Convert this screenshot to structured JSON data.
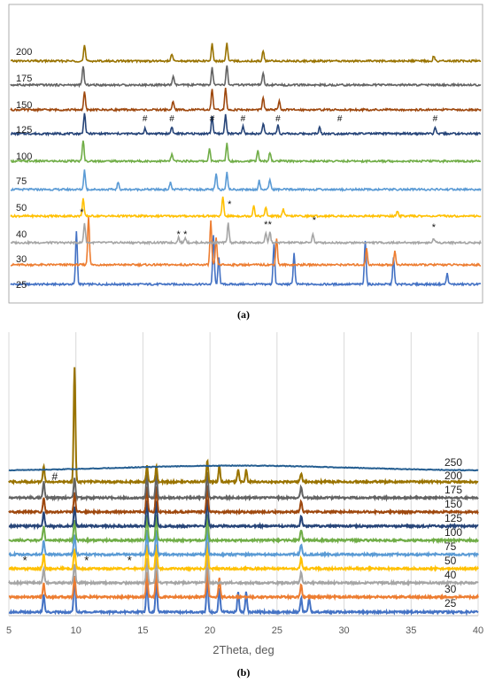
{
  "captions": {
    "a": "(a)",
    "b": "(b)"
  },
  "colors": {
    "25": "#4472c4",
    "30": "#ed7d31",
    "40": "#a5a5a5",
    "50": "#ffc000",
    "75": "#5b9bd5",
    "100": "#70ad47",
    "125": "#264478",
    "150": "#9e480e",
    "175": "#636363",
    "200": "#997300",
    "250": "#255e91"
  },
  "chart_data": [
    {
      "type": "line",
      "title": "",
      "xlabel": "",
      "ylabel": "",
      "grid": false,
      "series": [
        {
          "name": "25",
          "color": "#4472c4",
          "peaks": [
            [
              9.9,
              60
            ],
            [
              20.1,
              55
            ],
            [
              20.5,
              30
            ],
            [
              24.6,
              45
            ],
            [
              26.1,
              35
            ],
            [
              31.4,
              50
            ],
            [
              33.5,
              30
            ],
            [
              37.5,
              12
            ]
          ]
        },
        {
          "name": "30",
          "color": "#ed7d31",
          "peaks": [
            [
              10.8,
              55
            ],
            [
              19.9,
              50
            ],
            [
              20.3,
              30
            ],
            [
              24.8,
              30
            ],
            [
              31.5,
              18
            ],
            [
              33.6,
              15
            ]
          ]
        },
        {
          "name": "40",
          "color": "#a5a5a5",
          "peaks": [
            [
              10.5,
              22
            ],
            [
              17.5,
              6
            ],
            [
              18.0,
              6
            ],
            [
              21.2,
              22
            ],
            [
              24.0,
              10
            ],
            [
              24.3,
              12
            ],
            [
              27.5,
              10
            ],
            [
              36.5,
              5
            ]
          ]
        },
        {
          "name": "50",
          "color": "#ffc000",
          "peaks": [
            [
              10.4,
              20
            ],
            [
              20.8,
              22
            ],
            [
              23.1,
              12
            ],
            [
              24.0,
              10
            ],
            [
              25.3,
              8
            ],
            [
              33.8,
              6
            ]
          ]
        },
        {
          "name": "75",
          "color": "#5b9bd5",
          "peaks": [
            [
              10.5,
              22
            ],
            [
              13.0,
              8
            ],
            [
              16.9,
              8
            ],
            [
              20.3,
              18
            ],
            [
              21.1,
              20
            ],
            [
              23.5,
              10
            ],
            [
              24.3,
              12
            ]
          ]
        },
        {
          "name": "100",
          "color": "#70ad47",
          "peaks": [
            [
              10.4,
              24
            ],
            [
              17.0,
              8
            ],
            [
              19.8,
              14
            ],
            [
              21.1,
              20
            ],
            [
              23.4,
              12
            ],
            [
              24.3,
              10
            ]
          ]
        },
        {
          "name": "125",
          "color": "#264478",
          "peaks": [
            [
              10.5,
              24
            ],
            [
              15.0,
              6
            ],
            [
              17.0,
              8
            ],
            [
              20.0,
              20
            ],
            [
              21.0,
              22
            ],
            [
              22.3,
              8
            ],
            [
              23.8,
              12
            ],
            [
              24.9,
              10
            ],
            [
              28.0,
              7
            ],
            [
              36.6,
              6
            ]
          ]
        },
        {
          "name": "150",
          "color": "#9e480e",
          "peaks": [
            [
              10.5,
              20
            ],
            [
              17.1,
              10
            ],
            [
              20.0,
              24
            ],
            [
              21.0,
              24
            ],
            [
              23.8,
              14
            ],
            [
              25.0,
              10
            ]
          ]
        },
        {
          "name": "175",
          "color": "#636363",
          "peaks": [
            [
              10.4,
              22
            ],
            [
              17.1,
              10
            ],
            [
              20.0,
              20
            ],
            [
              21.1,
              22
            ],
            [
              23.8,
              14
            ]
          ]
        },
        {
          "name": "200",
          "color": "#997300",
          "peaks": [
            [
              10.5,
              18
            ],
            [
              17.0,
              8
            ],
            [
              20.0,
              20
            ],
            [
              21.1,
              20
            ],
            [
              23.8,
              12
            ],
            [
              36.5,
              6
            ]
          ]
        }
      ],
      "annotations": [
        {
          "text": "#",
          "series": "125"
        },
        {
          "text": "*",
          "series": "40"
        }
      ]
    },
    {
      "type": "line",
      "title": "",
      "xlabel": "2Theta, deg",
      "ylabel": "",
      "xlim": [
        5,
        40
      ],
      "x_ticks": [
        "5",
        "10",
        "15",
        "20",
        "25",
        "30",
        "35",
        "40"
      ],
      "grid": true,
      "series": [
        {
          "name": "25",
          "color": "#4472c4",
          "peaks": [
            [
              7.6,
              20
            ],
            [
              9.9,
              40
            ],
            [
              15.3,
              36
            ],
            [
              16.0,
              36
            ],
            [
              19.8,
              40
            ],
            [
              20.7,
              28
            ],
            [
              22.1,
              22
            ],
            [
              22.7,
              22
            ],
            [
              26.8,
              16
            ],
            [
              27.4,
              16
            ]
          ]
        },
        {
          "name": "30",
          "color": "#ed7d31",
          "peaks": [
            [
              7.6,
              16
            ],
            [
              9.9,
              24
            ],
            [
              15.3,
              28
            ],
            [
              16.0,
              30
            ],
            [
              19.8,
              34
            ],
            [
              20.7,
              22
            ],
            [
              26.8,
              14
            ]
          ]
        },
        {
          "name": "40",
          "color": "#a5a5a5",
          "peaks": [
            [
              7.6,
              16
            ],
            [
              9.9,
              22
            ],
            [
              15.3,
              28
            ],
            [
              16.0,
              30
            ],
            [
              19.8,
              32
            ],
            [
              26.8,
              12
            ]
          ]
        },
        {
          "name": "50",
          "color": "#ffc000",
          "peaks": [
            [
              7.6,
              16
            ],
            [
              9.9,
              22
            ],
            [
              15.3,
              28
            ],
            [
              16.0,
              28
            ],
            [
              19.8,
              30
            ],
            [
              26.8,
              12
            ]
          ]
        },
        {
          "name": "75",
          "color": "#5b9bd5",
          "peaks": [
            [
              7.6,
              16
            ],
            [
              9.9,
              22
            ],
            [
              15.3,
              28
            ],
            [
              16.0,
              28
            ],
            [
              19.8,
              30
            ],
            [
              26.8,
              12
            ]
          ]
        },
        {
          "name": "100",
          "color": "#70ad47",
          "peaks": [
            [
              7.6,
              16
            ],
            [
              9.9,
              22
            ],
            [
              15.3,
              28
            ],
            [
              16.0,
              28
            ],
            [
              19.8,
              30
            ],
            [
              26.8,
              12
            ]
          ]
        },
        {
          "name": "125",
          "color": "#264478",
          "peaks": [
            [
              7.6,
              16
            ],
            [
              9.9,
              22
            ],
            [
              15.3,
              28
            ],
            [
              16.0,
              28
            ],
            [
              19.8,
              30
            ],
            [
              26.8,
              12
            ]
          ]
        },
        {
          "name": "150",
          "color": "#9e480e",
          "peaks": [
            [
              7.6,
              16
            ],
            [
              9.9,
              22
            ],
            [
              15.3,
              28
            ],
            [
              16.0,
              28
            ],
            [
              19.8,
              30
            ],
            [
              26.8,
              12
            ]
          ]
        },
        {
          "name": "175",
          "color": "#636363",
          "peaks": [
            [
              7.6,
              18
            ],
            [
              9.9,
              22
            ],
            [
              15.3,
              28
            ],
            [
              16.0,
              28
            ],
            [
              19.8,
              30
            ],
            [
              26.8,
              12
            ]
          ]
        },
        {
          "name": "200",
          "color": "#997300",
          "peaks": [
            [
              7.6,
              18
            ],
            [
              9.9,
              130
            ],
            [
              15.3,
              18
            ],
            [
              16.0,
              18
            ],
            [
              19.8,
              24
            ],
            [
              20.7,
              18
            ],
            [
              22.1,
              14
            ],
            [
              22.7,
              14
            ],
            [
              26.8,
              10
            ]
          ]
        },
        {
          "name": "250",
          "color": "#255e91",
          "peaks": []
        }
      ],
      "annotations": [
        {
          "text": "#",
          "series": "175"
        },
        {
          "text": "*",
          "series": "50"
        },
        {
          "text": "*",
          "series": "50"
        },
        {
          "text": "*",
          "series": "50"
        }
      ]
    }
  ]
}
